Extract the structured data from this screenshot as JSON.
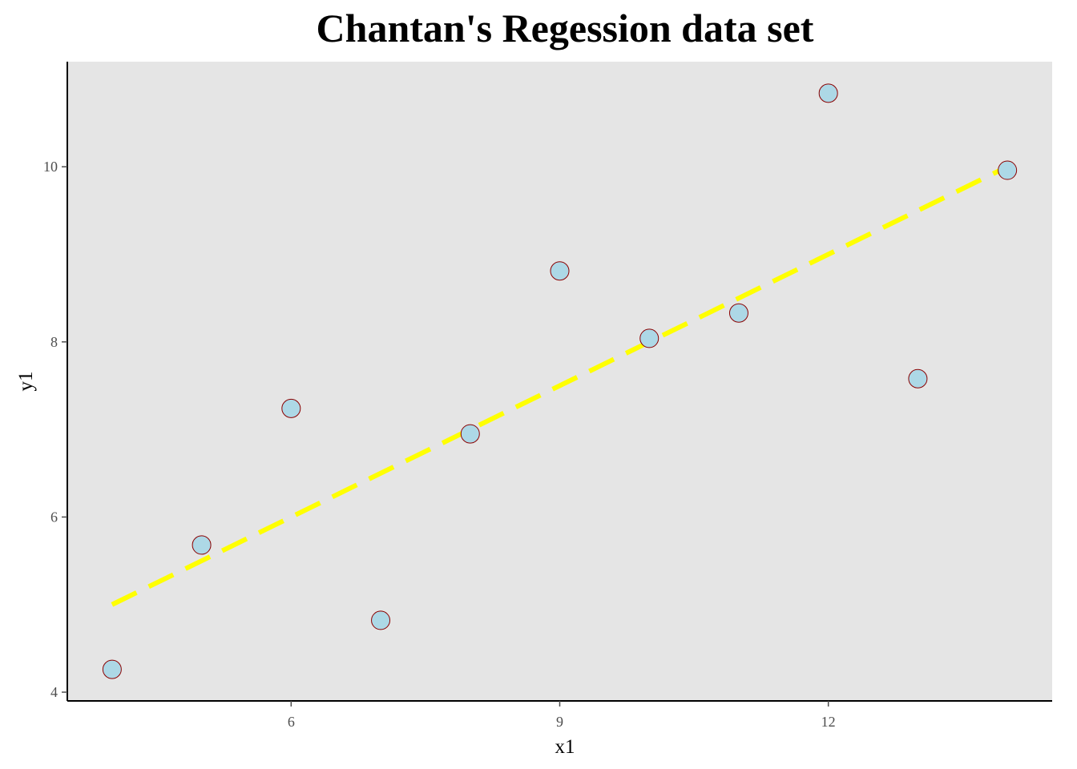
{
  "colors": {
    "panel_background": "#e5e5e5",
    "point_fill": "#add8e6",
    "point_stroke": "#8b0000",
    "fit_line": "#ffff00",
    "axis_line": "#000000",
    "tick_text": "#4d4d4d"
  },
  "chart_data": {
    "type": "scatter",
    "title": "Chantan's Regession data set",
    "xlabel": "x1",
    "ylabel": "y1",
    "xlim": [
      3.5,
      14.5
    ],
    "ylim": [
      3.9,
      11.2
    ],
    "x_ticks": [
      6,
      9,
      12
    ],
    "y_ticks": [
      4,
      6,
      8,
      10
    ],
    "grid": false,
    "legend": "none",
    "points": [
      {
        "x": 4,
        "y": 4.26
      },
      {
        "x": 5,
        "y": 5.68
      },
      {
        "x": 6,
        "y": 7.24
      },
      {
        "x": 7,
        "y": 4.82
      },
      {
        "x": 8,
        "y": 6.95
      },
      {
        "x": 9,
        "y": 8.81
      },
      {
        "x": 10,
        "y": 8.04
      },
      {
        "x": 11,
        "y": 8.33
      },
      {
        "x": 12,
        "y": 10.84
      },
      {
        "x": 13,
        "y": 7.58
      },
      {
        "x": 14,
        "y": 9.96
      }
    ],
    "fit_line": {
      "style": "dashed",
      "x": [
        4,
        14
      ],
      "y": [
        5.0,
        10.0
      ]
    }
  }
}
